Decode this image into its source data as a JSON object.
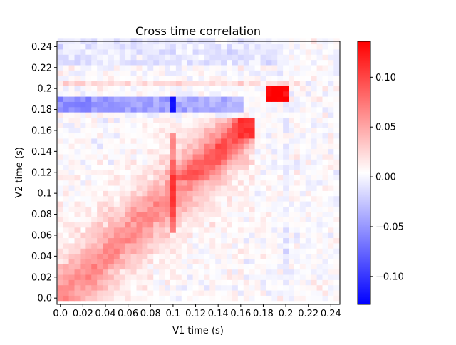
{
  "chart_data": {
    "type": "heatmap",
    "title": "Cross time correlation",
    "xlabel": "V1 time (s)",
    "ylabel": "V2 time (s)",
    "xlim": [
      -0.003,
      0.248
    ],
    "ylim": [
      -0.006,
      0.245
    ],
    "x_ticks": [
      0.0,
      0.02,
      0.04,
      0.06,
      0.08,
      0.1,
      0.12,
      0.14,
      0.16,
      0.18,
      0.2,
      0.22,
      0.24
    ],
    "x_tick_labels": [
      "0.0",
      "0.02",
      "0.04",
      "0.06",
      "0.08",
      "0.1",
      "0.12",
      "0.14",
      "0.16",
      "0.18",
      "0.2",
      "0.22",
      "0.24"
    ],
    "y_ticks": [
      0.0,
      0.02,
      0.04,
      0.06,
      0.08,
      0.1,
      0.12,
      0.14,
      0.16,
      0.18,
      0.2,
      0.22,
      0.24
    ],
    "y_tick_labels": [
      "0.0",
      "0.02",
      "0.04",
      "0.06",
      "0.08",
      "0.1",
      "0.12",
      "0.14",
      "0.16",
      "0.18",
      "0.2",
      "0.22",
      "0.24"
    ],
    "colormap": "bwr",
    "colormap_colors": [
      "#0000ff",
      "#ffffff",
      "#ff0000"
    ],
    "vmin": -0.128,
    "vmax": 0.136,
    "colorbar_ticks": [
      -0.1,
      -0.05,
      0.0,
      0.05,
      0.1
    ],
    "colorbar_tick_labels": [
      "−0.10",
      "−0.05",
      "0.00",
      "0.05",
      "0.10"
    ],
    "grid": false,
    "cell_size": 0.005,
    "cells_per_axis": 50,
    "features": {
      "diagonal_band": {
        "value": 0.05,
        "description_values": [
          0.0,
          0.165
        ]
      },
      "blue_band": {
        "y_range": [
          0.177,
          0.192
        ],
        "x_range": [
          0.0,
          0.16
        ],
        "value": -0.06
      },
      "blue_peak": {
        "x": 0.1,
        "y": 0.185,
        "value": -0.12
      },
      "red_peak": {
        "x": 0.195,
        "y": 0.195,
        "value": 0.136
      },
      "red_column_x": 0.1
    }
  }
}
